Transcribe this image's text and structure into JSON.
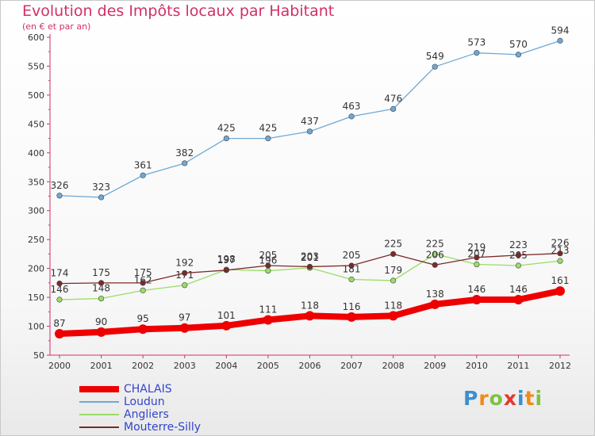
{
  "chart_data": {
    "type": "line",
    "title": "Evolution des Impôts locaux par Habitant",
    "subtitle": "(en € et par an)",
    "x": [
      "2000",
      "2001",
      "2002",
      "2003",
      "2004",
      "2005",
      "2006",
      "2007",
      "2008",
      "2009",
      "2010",
      "2011",
      "2012"
    ],
    "ylim": [
      50,
      600
    ],
    "yticks": [
      50,
      100,
      150,
      200,
      250,
      300,
      350,
      400,
      450,
      500,
      550,
      600
    ],
    "grid": false,
    "legend_position": "bottom-left",
    "series": [
      {
        "name": "CHALAIS",
        "color": "#ee0000",
        "values": [
          87,
          90,
          95,
          97,
          101,
          111,
          118,
          116,
          118,
          138,
          146,
          146,
          161
        ]
      },
      {
        "name": "Loudun",
        "color": "#6fa8d4",
        "values": [
          326,
          323,
          361,
          382,
          425,
          425,
          437,
          463,
          476,
          549,
          573,
          570,
          594
        ]
      },
      {
        "name": "Angliers",
        "color": "#99dd66",
        "values": [
          146,
          148,
          162,
          171,
          198,
          196,
          201,
          181,
          179,
          225,
          207,
          205,
          213
        ]
      },
      {
        "name": "Mouterre-Silly",
        "color": "#7a2a2a",
        "values": [
          174,
          175,
          175,
          192,
          197,
          205,
          203,
          205,
          225,
          206,
          219,
          223,
          226
        ]
      }
    ]
  },
  "logo": {
    "text": "Proxiti",
    "letters": [
      {
        "ch": "P",
        "color": "#3a8fd0"
      },
      {
        "ch": "r",
        "color": "#f08a1c"
      },
      {
        "ch": "o",
        "color": "#7cc242"
      },
      {
        "ch": "x",
        "color": "#e8352b"
      },
      {
        "ch": "i",
        "color": "#3a8fd0"
      },
      {
        "ch": "t",
        "color": "#f08a1c"
      },
      {
        "ch": "i",
        "color": "#7cc242"
      }
    ]
  }
}
